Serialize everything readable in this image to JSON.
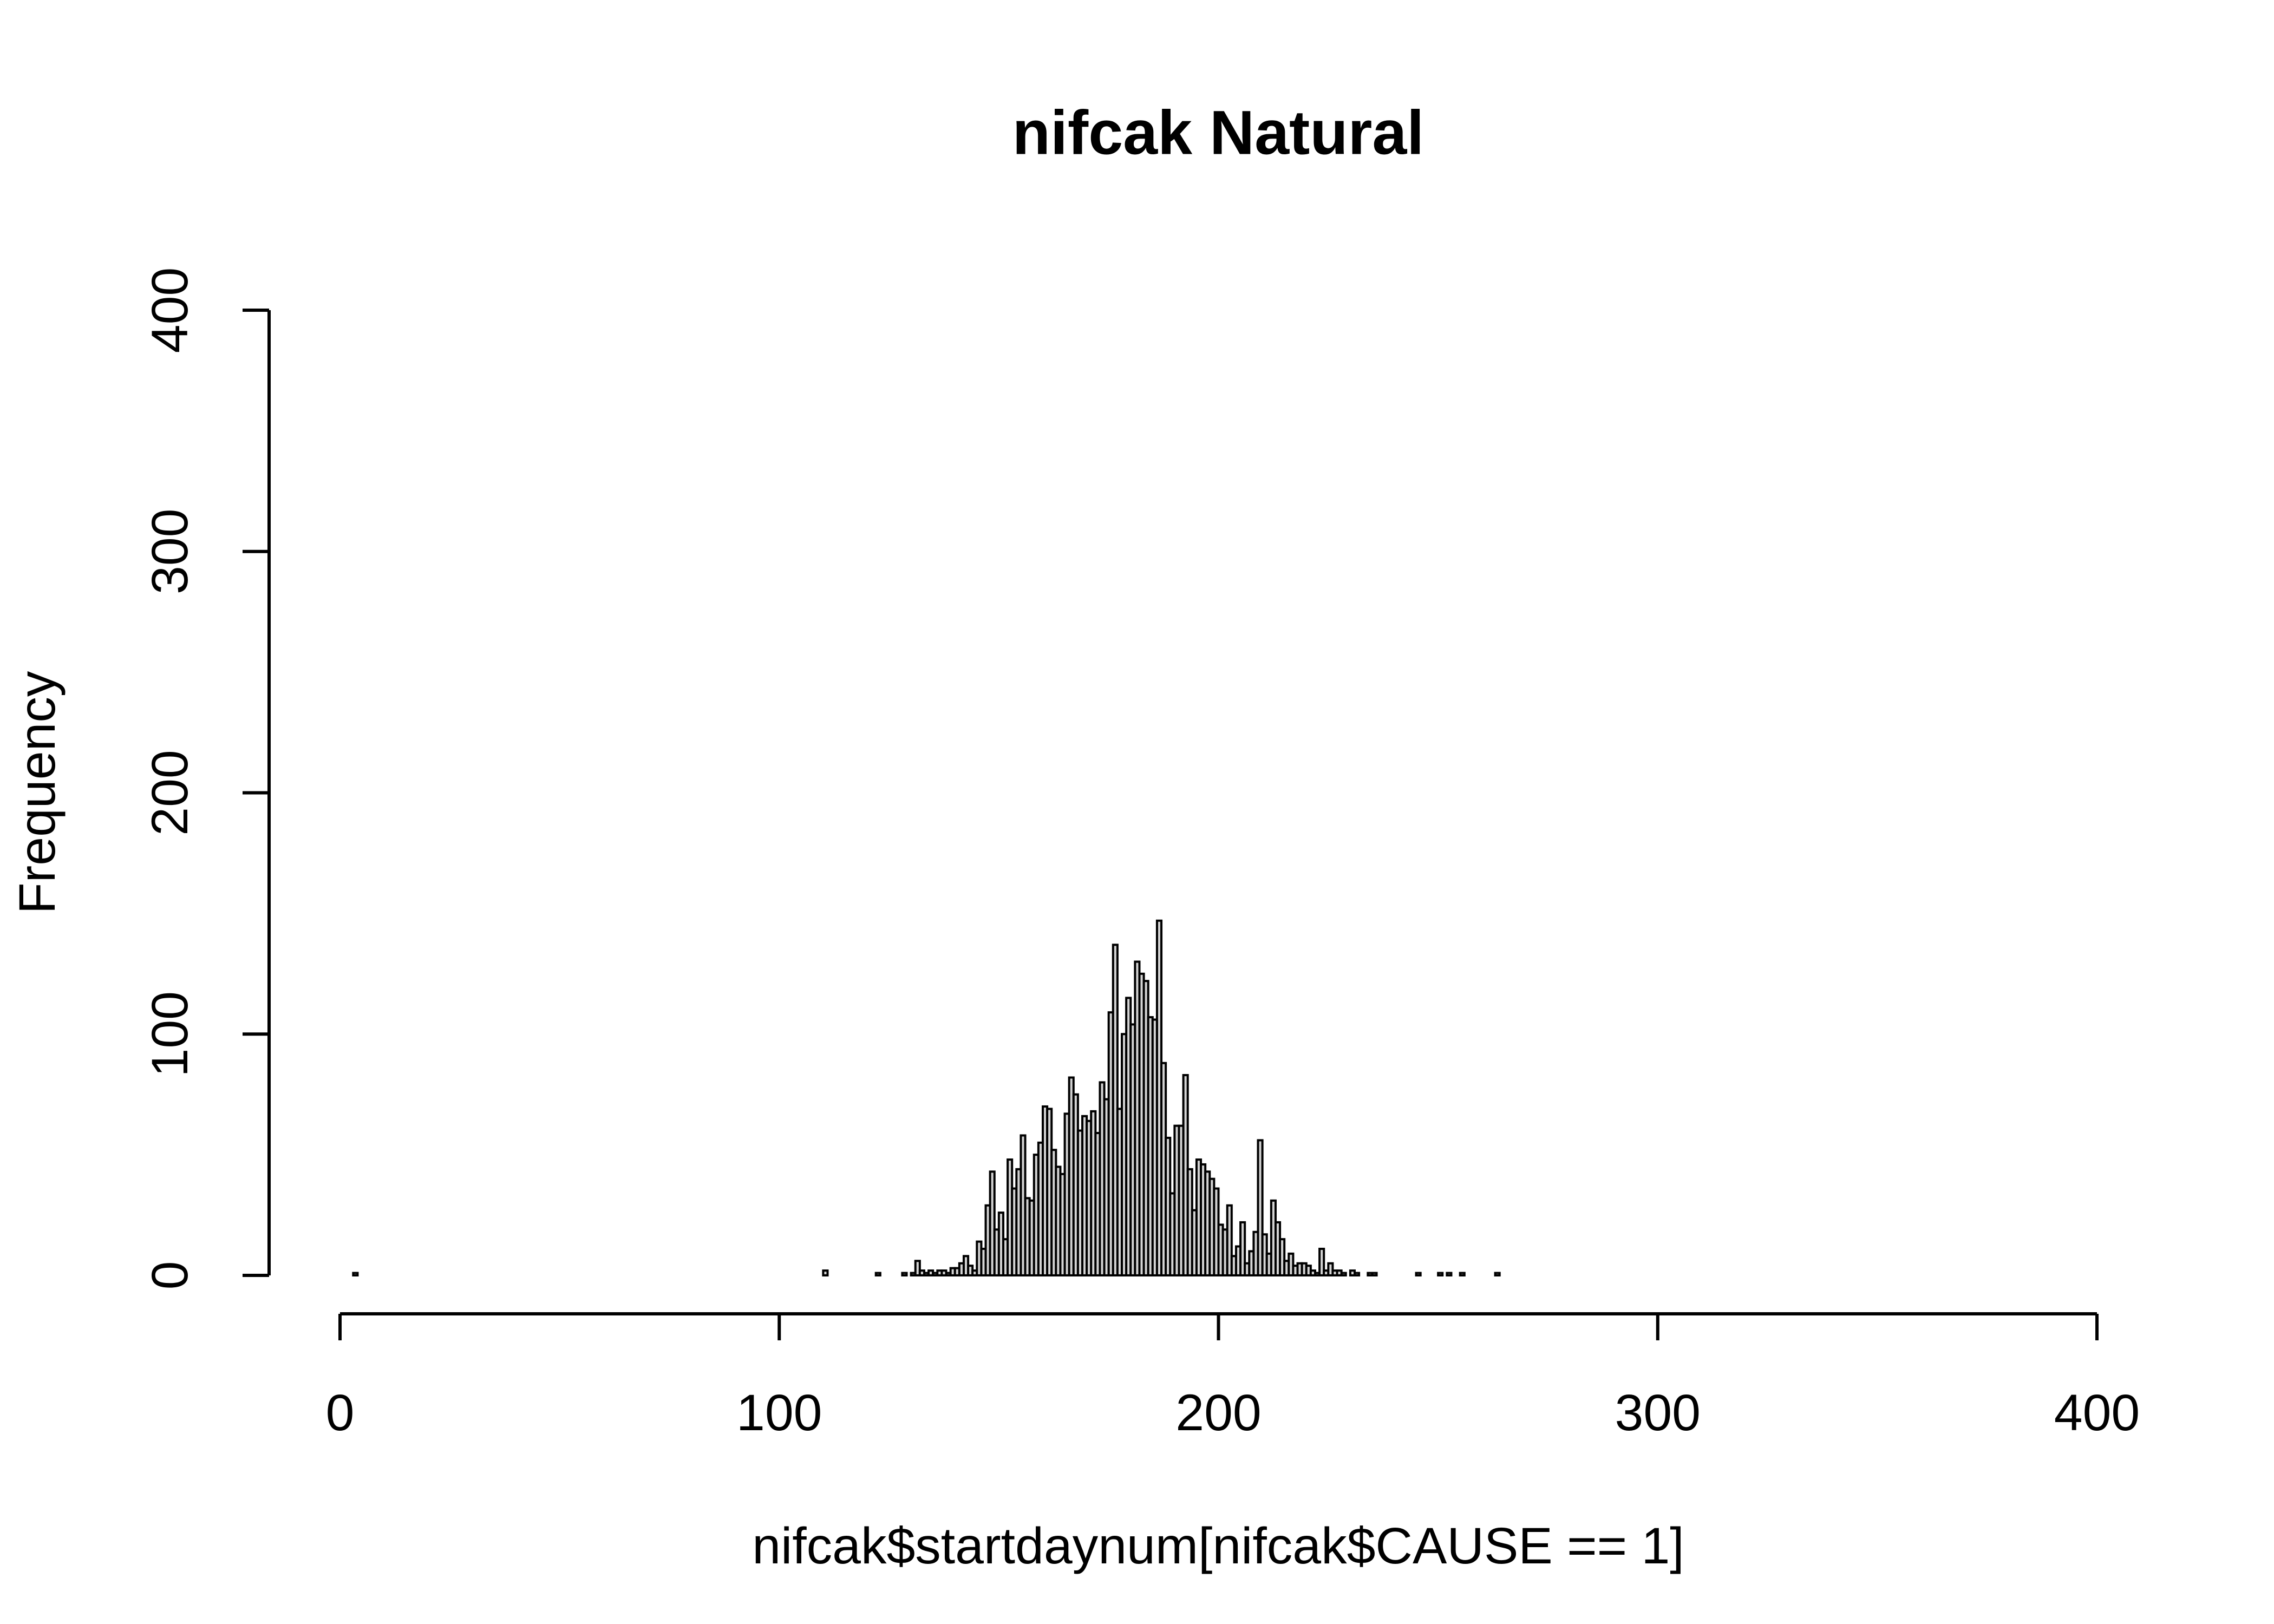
{
  "chart_data": {
    "type": "histogram",
    "title": "nifcak Natural",
    "xlabel": "nifcak$startdaynum[nifcak$CAUSE == 1]",
    "ylabel": "Frequency",
    "color": "#d3d3d3",
    "xlim": [
      0,
      400
    ],
    "ylim": [
      0,
      400
    ],
    "xticks": [
      0,
      100,
      200,
      300,
      400
    ],
    "yticks": [
      0,
      100,
      200,
      300,
      400
    ],
    "bins": [
      0,
      1,
      2,
      3,
      4,
      5,
      6,
      7,
      8,
      9,
      10,
      11,
      12,
      13,
      14,
      15,
      16,
      17,
      18,
      19,
      20,
      21,
      22,
      23,
      24,
      25,
      26,
      27,
      28,
      29,
      30,
      31,
      32,
      33,
      34,
      35,
      36,
      37,
      38,
      39,
      40,
      41,
      42,
      43,
      44,
      45,
      46,
      47,
      48,
      49,
      50,
      51,
      52,
      53,
      54,
      55,
      56,
      57,
      58,
      59,
      60,
      61,
      62,
      63,
      64,
      65,
      66,
      67,
      68,
      69,
      70,
      71,
      72,
      73,
      74,
      75,
      76,
      77,
      78,
      79,
      80,
      81,
      82,
      83,
      84,
      85,
      86,
      87,
      88,
      89,
      90,
      91,
      92,
      93,
      94,
      95,
      96,
      97,
      98,
      99,
      100,
      101,
      102,
      103,
      104,
      105,
      106,
      107,
      108,
      109,
      110,
      111,
      112,
      113,
      114,
      115,
      116,
      117,
      118,
      119,
      120,
      121,
      122,
      123,
      124,
      125,
      126,
      127,
      128,
      129,
      130,
      131,
      132,
      133,
      134,
      135,
      136,
      137,
      138,
      139,
      140,
      141,
      142,
      143,
      144,
      145,
      146,
      147,
      148,
      149,
      150,
      151,
      152,
      153,
      154,
      155,
      156,
      157,
      158,
      159,
      160,
      161,
      162,
      163,
      164,
      165,
      166,
      167,
      168,
      169,
      170,
      171,
      172,
      173,
      174,
      175,
      176,
      177,
      178,
      179,
      180,
      181,
      182,
      183,
      184,
      185,
      186,
      187,
      188,
      189,
      190,
      191,
      192,
      193,
      194,
      195,
      196,
      197,
      198,
      199,
      200,
      201,
      202,
      203,
      204,
      205,
      206,
      207,
      208,
      209,
      210,
      211,
      212,
      213,
      214,
      215,
      216,
      217,
      218,
      219,
      220,
      221,
      222,
      223,
      224,
      225,
      226,
      227,
      228,
      229,
      230,
      231,
      232,
      233,
      234,
      235,
      236,
      237,
      238,
      239,
      240,
      241,
      242,
      243,
      244,
      245,
      246,
      247,
      248,
      249,
      250,
      251,
      252,
      253,
      254,
      255,
      256,
      257,
      258,
      259,
      260,
      261,
      262,
      263,
      264,
      265,
      266,
      267,
      268,
      269,
      270,
      271,
      272,
      273,
      274,
      275,
      276,
      277,
      278,
      279,
      280,
      281,
      282,
      283,
      284,
      285,
      286,
      287,
      288,
      289,
      290,
      291,
      292,
      293,
      294,
      295,
      296,
      297,
      298,
      299,
      300,
      301,
      302,
      303,
      304,
      305,
      306,
      307,
      308,
      309,
      310,
      311,
      312,
      313,
      314,
      315,
      316,
      317,
      318,
      319,
      320,
      321,
      322,
      323,
      324,
      325,
      326,
      327,
      328,
      329,
      330,
      331,
      332,
      333,
      334,
      335,
      336,
      337,
      338,
      339,
      340,
      341,
      342,
      343,
      344,
      345,
      346,
      347,
      348,
      349,
      350,
      351,
      352,
      353,
      354,
      355,
      356,
      357,
      358,
      359,
      360,
      361,
      362,
      363,
      364,
      365,
      366
    ],
    "counts": [
      0,
      0,
      0,
      1,
      0,
      0,
      0,
      0,
      0,
      0,
      0,
      0,
      0,
      0,
      0,
      0,
      0,
      0,
      0,
      0,
      0,
      0,
      0,
      0,
      0,
      0,
      0,
      0,
      0,
      0,
      0,
      0,
      0,
      0,
      0,
      0,
      0,
      0,
      0,
      0,
      0,
      0,
      0,
      0,
      0,
      0,
      0,
      0,
      0,
      0,
      0,
      0,
      0,
      0,
      0,
      0,
      0,
      0,
      0,
      0,
      0,
      0,
      0,
      0,
      0,
      0,
      0,
      0,
      0,
      0,
      0,
      0,
      0,
      0,
      0,
      0,
      0,
      0,
      0,
      0,
      0,
      0,
      0,
      0,
      0,
      0,
      0,
      0,
      0,
      0,
      0,
      0,
      0,
      0,
      0,
      0,
      0,
      0,
      0,
      0,
      0,
      0,
      0,
      0,
      0,
      0,
      0,
      0,
      0,
      0,
      2,
      0,
      0,
      0,
      0,
      0,
      0,
      0,
      0,
      0,
      0,
      0,
      1,
      0,
      0,
      0,
      0,
      0,
      1,
      0,
      1,
      6,
      2,
      1,
      2,
      1,
      2,
      2,
      1,
      3,
      3,
      5,
      8,
      4,
      2,
      14,
      11,
      29,
      43,
      19,
      26,
      15,
      48,
      36,
      44,
      58,
      32,
      31,
      50,
      55,
      70,
      69,
      52,
      45,
      42,
      67,
      82,
      75,
      60,
      66,
      64,
      68,
      59,
      80,
      73,
      109,
      137,
      69,
      100,
      115,
      104,
      130,
      125,
      122,
      107,
      106,
      147,
      88,
      57,
      34,
      62,
      62,
      83,
      44,
      27,
      48,
      46,
      43,
      40,
      36,
      21,
      19,
      29,
      8,
      12,
      22,
      5,
      10,
      18,
      56,
      17,
      9,
      31,
      22,
      15,
      6,
      9,
      4,
      5,
      5,
      4,
      2,
      1,
      11,
      2,
      5,
      2,
      2,
      1,
      0,
      2,
      1,
      0,
      0,
      1,
      1,
      0,
      0,
      0,
      0,
      0,
      0,
      0,
      0,
      0,
      1,
      0,
      0,
      0,
      0,
      1,
      0,
      1,
      0,
      0,
      1,
      0,
      0,
      0,
      0,
      0,
      0,
      0,
      1,
      0,
      0,
      0,
      0,
      0,
      0,
      0,
      0,
      0,
      0,
      0,
      0,
      0,
      0,
      0,
      0,
      0,
      0,
      0,
      0,
      0,
      0,
      0,
      0,
      0,
      0,
      0,
      0,
      0,
      0,
      0,
      0,
      0,
      0,
      0,
      0,
      0,
      0,
      0,
      0,
      0,
      0,
      0,
      0,
      0,
      0,
      0,
      0,
      0,
      0,
      0,
      0,
      0,
      0,
      0,
      0,
      0,
      0,
      0,
      0,
      0,
      0,
      0,
      0,
      0,
      0,
      0,
      0,
      0,
      0,
      0,
      0,
      0,
      0,
      0,
      0,
      0,
      0,
      0,
      0,
      0,
      0,
      0,
      0,
      0,
      0,
      0,
      0,
      0,
      0,
      0,
      0,
      0,
      0,
      0,
      0,
      0,
      0,
      0,
      0,
      0,
      0
    ]
  }
}
